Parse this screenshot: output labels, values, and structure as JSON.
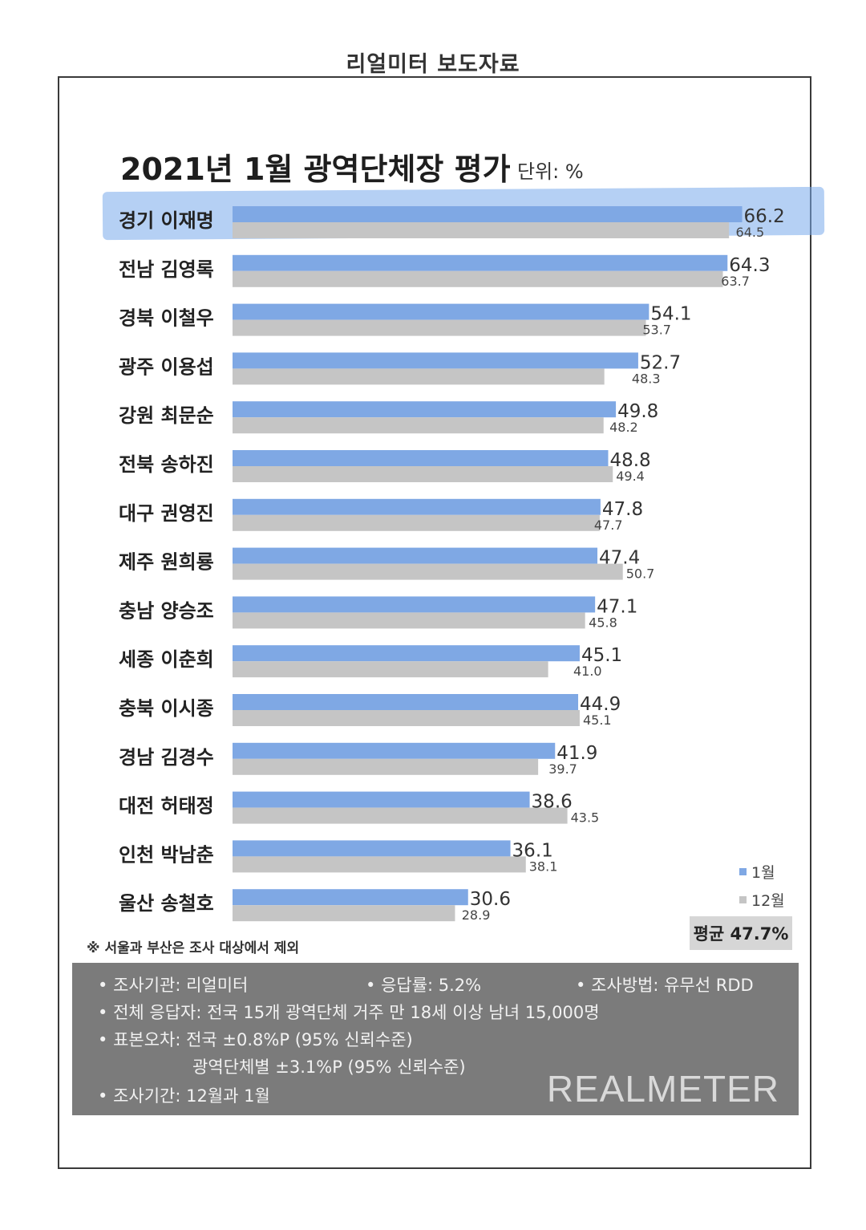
{
  "header": "리얼미터 보도자료",
  "title": "2021년 1월 광역단체장 평가",
  "unit": "단위: %",
  "legend": {
    "series1": "1월",
    "series2": "12월"
  },
  "average": "평균 47.7%",
  "note": "※ 서울과 부산은 조사 대상에서 제외",
  "footer": {
    "agency": "조사기관: 리얼미터",
    "response_rate": "응답률: 5.2%",
    "method": "조사방법: 유무선 RDD",
    "respondents": "전체 응답자: 전국 15개 광역단체 거주 만 18세 이상 남녀 15,000명",
    "error_national": "표본오차: 전국 ±0.8%P (95% 신뢰수준)",
    "error_regional": "광역단체별 ±3.1%P (95% 신뢰수준)",
    "period": "조사기간: 12월과 1월",
    "brand": "REALMETER"
  },
  "colors": {
    "jan": "#7fa8e4",
    "dec": "#c5c5c5",
    "highlight": "#7aaae9"
  },
  "chart_data": {
    "type": "bar",
    "orientation": "horizontal",
    "categories": [
      "경기 이재명",
      "전남 김영록",
      "경북 이철우",
      "광주 이용섭",
      "강원 최문순",
      "전북 송하진",
      "대구 권영진",
      "제주 원희룡",
      "충남 양승조",
      "세종 이춘희",
      "충북 이시종",
      "경남 김경수",
      "대전 허태정",
      "인천 박남춘",
      "울산 송철호"
    ],
    "series": [
      {
        "name": "1월",
        "values": [
          66.2,
          64.3,
          54.1,
          52.7,
          49.8,
          48.8,
          47.8,
          47.4,
          47.1,
          45.1,
          44.9,
          41.9,
          38.6,
          36.1,
          30.6
        ]
      },
      {
        "name": "12월",
        "values": [
          64.5,
          63.7,
          53.7,
          48.3,
          48.2,
          49.4,
          47.7,
          50.7,
          45.8,
          41.0,
          45.1,
          39.7,
          43.5,
          38.1,
          28.9
        ]
      }
    ],
    "value_labels": {
      "jan": [
        "66.2",
        "64.3",
        "54.1",
        "52.7",
        "49.8",
        "48.8",
        "47.8",
        "47.4",
        "47.1",
        "45.1",
        "44.9",
        "41.9",
        "38.6",
        "36.1",
        "30.6"
      ],
      "dec": [
        "64.5",
        "63.7",
        "53.7",
        "48.3",
        "48.2",
        "49.4",
        "47.7",
        "50.7",
        "45.8",
        "41.0",
        "45.1",
        "39.7",
        "43.5",
        "38.1",
        "28.9"
      ]
    },
    "title": "2021년 1월 광역단체장 평가",
    "legend_position": "bottom-right",
    "highlighted": "경기 이재명"
  }
}
